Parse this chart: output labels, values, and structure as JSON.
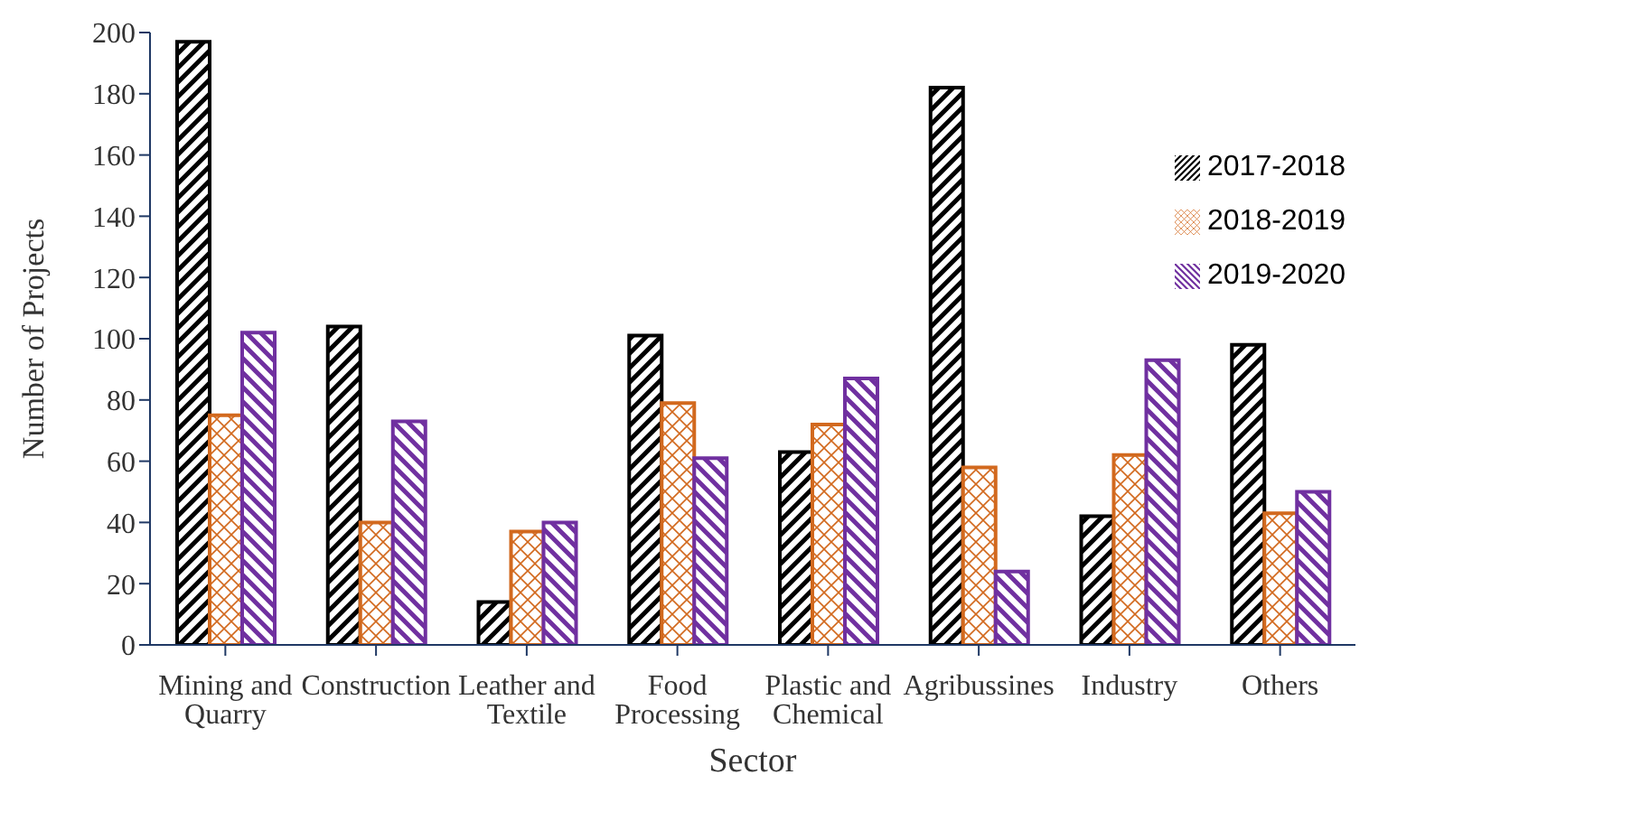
{
  "chart_data": {
    "type": "bar",
    "xlabel": "Sector",
    "ylabel": "Number of Projects",
    "categories": [
      "Mining and Quarry",
      "Construction",
      "Leather and Textile",
      "Food Processing",
      "Plastic and Chemical",
      "Agribussines",
      "Industry",
      "Others"
    ],
    "series": [
      {
        "name": "2017-2018",
        "color": "#000000",
        "values": [
          197,
          104,
          14,
          101,
          63,
          182,
          42,
          98
        ]
      },
      {
        "name": "2018-2019",
        "color": "#d2691e",
        "values": [
          75,
          40,
          37,
          79,
          72,
          58,
          62,
          43
        ]
      },
      {
        "name": "2019-2020",
        "color": "#7030a0",
        "values": [
          102,
          73,
          40,
          61,
          87,
          24,
          93,
          50
        ]
      }
    ],
    "ylim": [
      0,
      200
    ],
    "yticks": [
      0,
      20,
      40,
      60,
      80,
      100,
      120,
      140,
      160,
      180,
      200
    ],
    "grid": false,
    "legend": "top right"
  }
}
